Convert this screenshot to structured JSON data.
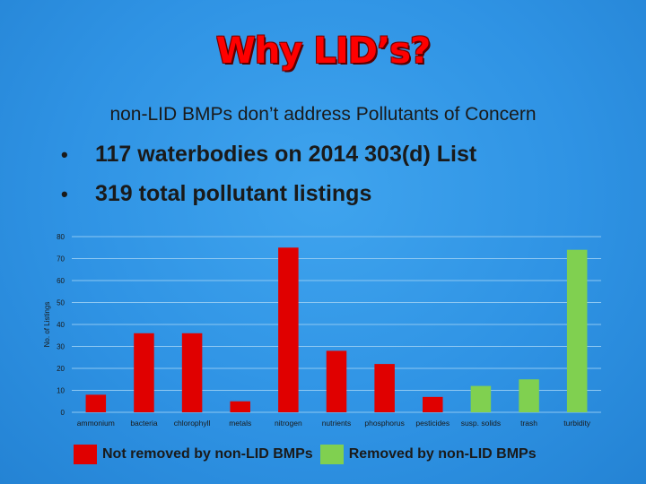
{
  "slide": {
    "title": "Why LID’s?",
    "subtitle": "non-LID BMPs don’t address Pollutants of Concern",
    "bullets": [
      "117 waterbodies on 2014 303(d) List",
      "319 total pollutant listings"
    ],
    "bullet_marker": "•"
  },
  "colors": {
    "not_removed": "#e00000",
    "removed": "#80d050",
    "grid": "#8ec8f2",
    "axis_text": "#1a1a1a"
  },
  "chart_data": {
    "type": "bar",
    "title": "",
    "xlabel": "",
    "ylabel": "No. of Listings",
    "ylim": [
      0,
      80
    ],
    "yticks": [
      0,
      10,
      20,
      30,
      40,
      50,
      60,
      70,
      80
    ],
    "grid": true,
    "categories": [
      "ammonium",
      "bacteria",
      "chlorophyll",
      "metals",
      "nitrogen",
      "nutrients",
      "phosphorus",
      "pesticides",
      "susp. solids",
      "trash",
      "turbidity"
    ],
    "values": [
      8,
      36,
      36,
      5,
      75,
      28,
      22,
      7,
      12,
      15,
      74
    ],
    "groups": [
      "not_removed",
      "not_removed",
      "not_removed",
      "not_removed",
      "not_removed",
      "not_removed",
      "not_removed",
      "not_removed",
      "removed",
      "removed",
      "removed"
    ],
    "legend": {
      "placement": "bottom",
      "entries": [
        {
          "key": "not_removed",
          "label": "Not removed by non-LID BMPs"
        },
        {
          "key": "removed",
          "label": "Removed by non-LID BMPs"
        }
      ]
    }
  }
}
